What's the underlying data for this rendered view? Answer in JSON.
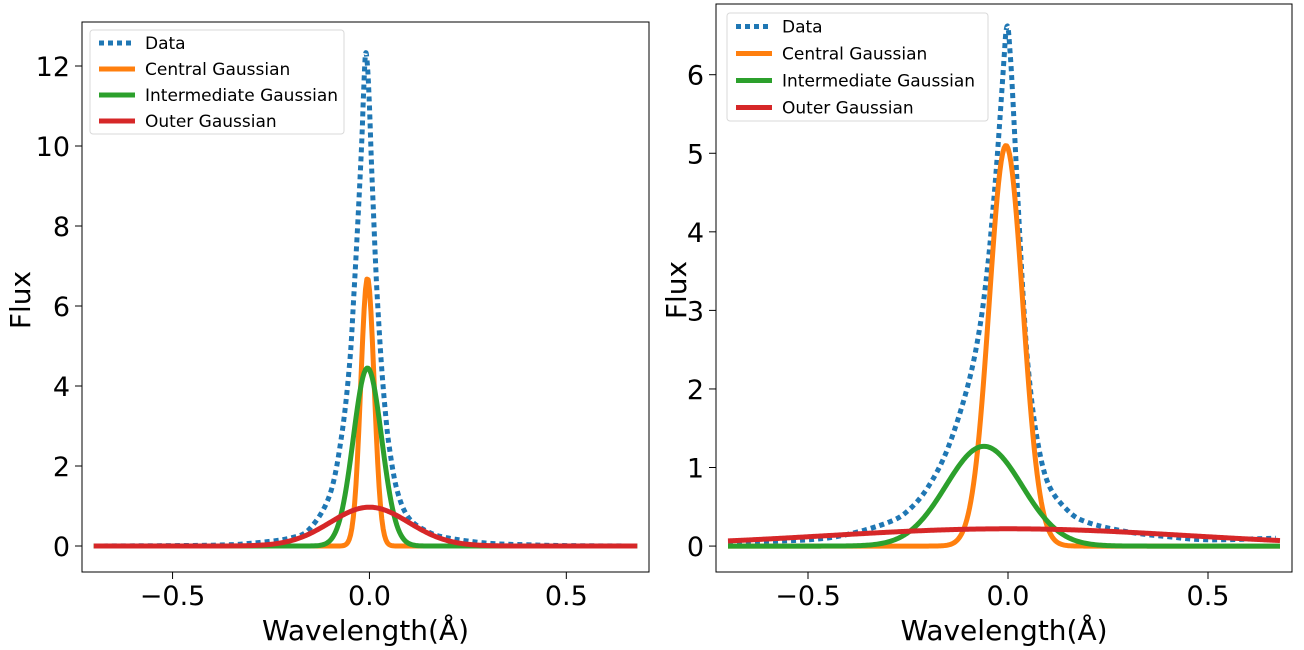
{
  "chart_data": [
    {
      "type": "line",
      "xlabel": "Wavelength(Å)",
      "ylabel": "Flux",
      "xlim": [
        -0.73,
        0.71
      ],
      "ylim": [
        -0.65,
        13.1
      ],
      "xticks": [
        -0.5,
        0.0,
        0.5
      ],
      "xtick_labels": [
        "−0.5",
        "0.0",
        "0.5"
      ],
      "yticks": [
        0,
        2,
        4,
        6,
        8,
        10,
        12
      ],
      "ytick_labels": [
        "0",
        "2",
        "4",
        "6",
        "8",
        "10",
        "12"
      ],
      "grid": false,
      "legend": "top-left",
      "series": [
        {
          "name": "Data",
          "color": "#1f77b4",
          "style": "dotted",
          "x": [
            -0.7,
            -0.4,
            -0.3,
            -0.2,
            -0.15,
            -0.1,
            -0.07,
            -0.05,
            -0.04,
            -0.03,
            -0.02,
            -0.015,
            -0.01,
            -0.005,
            0.0,
            0.005,
            0.01,
            0.015,
            0.02,
            0.03,
            0.04,
            0.05,
            0.07,
            0.1,
            0.15,
            0.2,
            0.3,
            0.4,
            0.5,
            0.68
          ],
          "y": [
            0.0,
            0.02,
            0.07,
            0.2,
            0.45,
            1.3,
            2.8,
            4.6,
            6.2,
            8.0,
            10.0,
            11.3,
            12.3,
            12.0,
            11.0,
            9.6,
            8.4,
            7.2,
            6.2,
            4.6,
            3.4,
            2.5,
            1.4,
            0.7,
            0.35,
            0.2,
            0.07,
            0.03,
            0.01,
            0.0
          ]
        },
        {
          "name": "Central Gaussian",
          "color": "#ff7f0e",
          "style": "solid",
          "gaussian": {
            "amplitude": 6.7,
            "center": -0.005,
            "sigma": 0.017
          },
          "x_range": [
            -0.7,
            0.68
          ]
        },
        {
          "name": "Intermediate Gaussian",
          "color": "#2ca02c",
          "style": "solid",
          "gaussian": {
            "amplitude": 4.45,
            "center": -0.005,
            "sigma": 0.036
          },
          "x_range": [
            -0.7,
            0.68
          ]
        },
        {
          "name": "Outer Gaussian",
          "color": "#d62728",
          "style": "solid",
          "gaussian": {
            "amplitude": 0.97,
            "center": 0.0,
            "sigma": 0.1
          },
          "x_range": [
            -0.7,
            0.68
          ]
        }
      ]
    },
    {
      "type": "line",
      "xlabel": "Wavelength(Å)",
      "ylabel": "Flux",
      "xlim": [
        -0.73,
        0.71
      ],
      "ylim": [
        -0.33,
        6.9
      ],
      "xticks": [
        -0.5,
        0.0,
        0.5
      ],
      "xtick_labels": [
        "−0.5",
        "0.0",
        "0.5"
      ],
      "yticks": [
        0,
        1,
        2,
        3,
        4,
        5,
        6
      ],
      "ytick_labels": [
        "0",
        "1",
        "2",
        "3",
        "4",
        "5",
        "6"
      ],
      "grid": false,
      "legend": "top-left",
      "series": [
        {
          "name": "Data",
          "color": "#1f77b4",
          "style": "dotted",
          "x": [
            -0.7,
            -0.5,
            -0.4,
            -0.3,
            -0.25,
            -0.2,
            -0.15,
            -0.1,
            -0.07,
            -0.05,
            -0.04,
            -0.03,
            -0.02,
            -0.01,
            -0.005,
            0.0,
            0.005,
            0.01,
            0.02,
            0.03,
            0.04,
            0.05,
            0.07,
            0.1,
            0.15,
            0.2,
            0.3,
            0.4,
            0.5,
            0.67
          ],
          "y": [
            0.05,
            0.08,
            0.15,
            0.3,
            0.45,
            0.75,
            1.25,
            2.05,
            2.8,
            3.6,
            4.15,
            4.75,
            5.45,
            6.2,
            6.55,
            6.6,
            6.3,
            5.9,
            4.9,
            3.9,
            3.0,
            2.3,
            1.45,
            0.8,
            0.45,
            0.3,
            0.18,
            0.12,
            0.08,
            0.1
          ]
        },
        {
          "name": "Central Gaussian",
          "color": "#ff7f0e",
          "style": "solid",
          "gaussian": {
            "amplitude": 5.1,
            "center": -0.005,
            "sigma": 0.042
          },
          "x_range": [
            -0.7,
            0.68
          ]
        },
        {
          "name": "Intermediate Gaussian",
          "color": "#2ca02c",
          "style": "solid",
          "gaussian": {
            "amplitude": 1.27,
            "center": -0.06,
            "sigma": 0.095
          },
          "x_range": [
            -0.7,
            0.68
          ]
        },
        {
          "name": "Outer Gaussian",
          "color": "#d62728",
          "style": "solid",
          "gaussian": {
            "amplitude": 0.22,
            "center": 0.0,
            "sigma": 0.45
          },
          "x_range": [
            -0.7,
            0.68
          ]
        }
      ]
    }
  ]
}
